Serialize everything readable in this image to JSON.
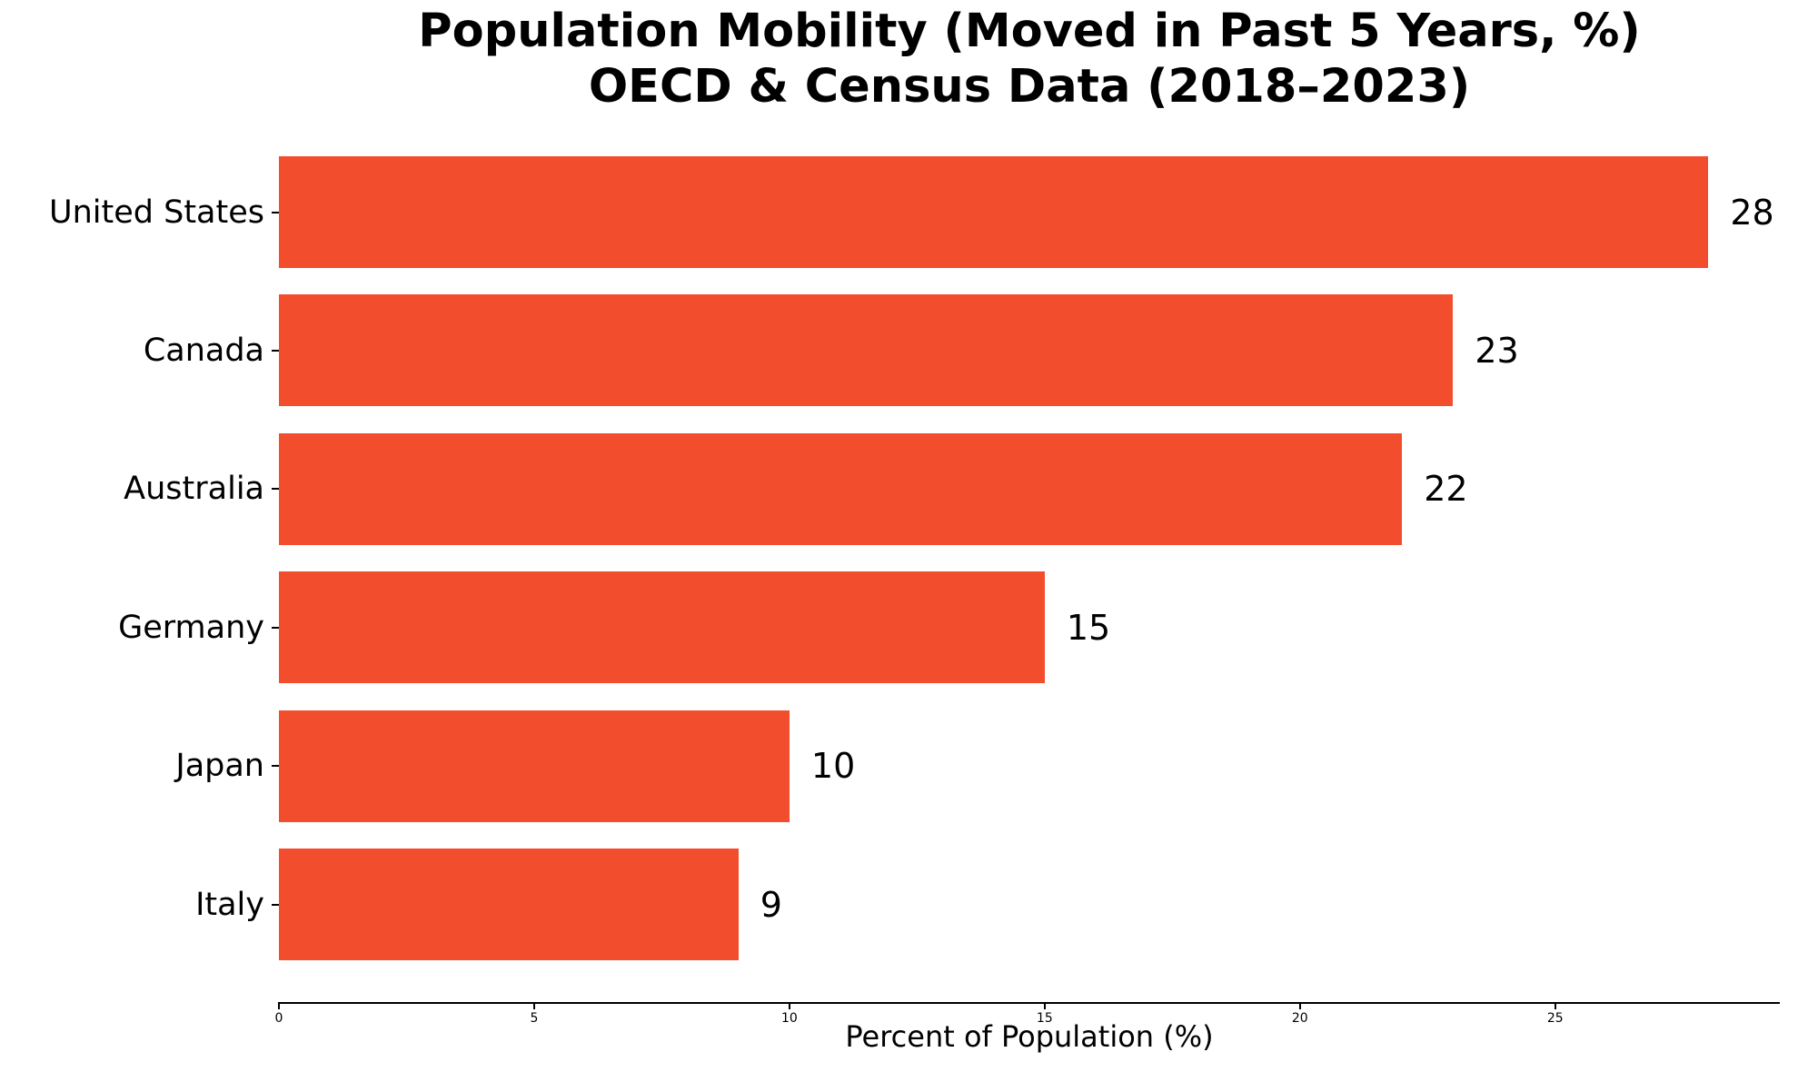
{
  "figure": {
    "background": "#ffffff",
    "text_color": "#000000"
  },
  "chart_data": {
    "type": "bar",
    "orientation": "horizontal",
    "title": "Population Mobility (Moved in Past 5 Years, %)",
    "subtitle": "OECD & Census Data (2018–2023)",
    "categories": [
      "United States",
      "Canada",
      "Australia",
      "Germany",
      "Japan",
      "Italy"
    ],
    "values": [
      28,
      23,
      22,
      15,
      10,
      9
    ],
    "value_labels": [
      "28",
      "23",
      "22",
      "15",
      "10",
      "9"
    ],
    "xlabel": "Percent of Population (%)",
    "xticks": [
      "0",
      "5",
      "10",
      "15",
      "20",
      "25"
    ],
    "xtick_values": [
      0,
      5,
      10,
      15,
      20,
      25
    ],
    "xlim": [
      0,
      29.4
    ],
    "bar_color": "#F24D2D",
    "axis_color": "#000000",
    "grid": false,
    "legend": null
  }
}
